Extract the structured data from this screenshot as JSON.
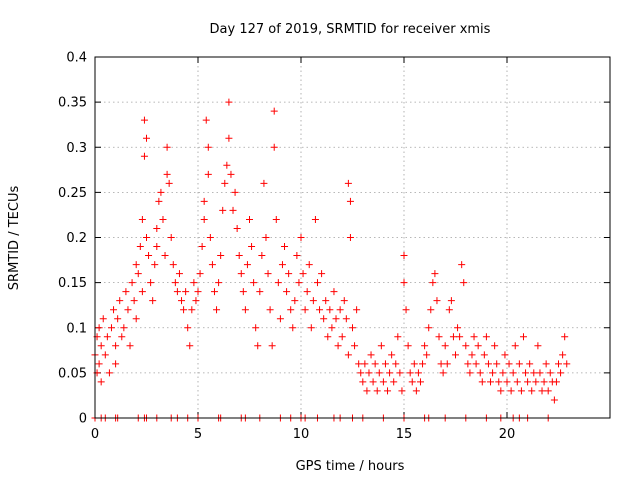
{
  "chart_data": {
    "type": "scatter",
    "title": "Day 127 of 2019, SRMTID for receiver xmis",
    "xlabel": "GPS time / hours",
    "ylabel": "SRMTID / TECUs",
    "xlim": [
      0,
      25
    ],
    "ylim": [
      0,
      0.4
    ],
    "grid": true,
    "x_ticks": [
      0,
      5,
      10,
      15,
      20
    ],
    "x_tick_labels": [
      "0",
      "5",
      "10",
      "15",
      "20"
    ],
    "y_ticks": [
      0,
      0.05,
      0.1,
      0.15,
      0.2,
      0.25,
      0.3,
      0.35,
      0.4
    ],
    "y_tick_labels": [
      "0",
      "0.05",
      "0.1",
      "0.15",
      "0.2",
      "0.25",
      "0.3",
      "0.35",
      "0.4"
    ],
    "marker": "plus",
    "color": "#ff0000",
    "series": [
      {
        "name": "SRMTID",
        "points": [
          [
            0.0,
            0.07
          ],
          [
            0.1,
            0.05
          ],
          [
            0.1,
            0.09
          ],
          [
            0.2,
            0.06
          ],
          [
            0.2,
            0.1
          ],
          [
            0.3,
            0.04
          ],
          [
            0.3,
            0.08
          ],
          [
            0.4,
            0.11
          ],
          [
            0.5,
            0.07
          ],
          [
            0.6,
            0.09
          ],
          [
            0.7,
            0.05
          ],
          [
            0.8,
            0.1
          ],
          [
            0.9,
            0.12
          ],
          [
            1.0,
            0.08
          ],
          [
            1.0,
            0.06
          ],
          [
            1.1,
            0.11
          ],
          [
            1.2,
            0.13
          ],
          [
            1.3,
            0.09
          ],
          [
            1.4,
            0.1
          ],
          [
            1.5,
            0.14
          ],
          [
            1.6,
            0.12
          ],
          [
            1.7,
            0.08
          ],
          [
            1.8,
            0.15
          ],
          [
            1.9,
            0.13
          ],
          [
            2.0,
            0.11
          ],
          [
            2.0,
            0.17
          ],
          [
            2.1,
            0.16
          ],
          [
            2.2,
            0.19
          ],
          [
            2.3,
            0.22
          ],
          [
            2.3,
            0.14
          ],
          [
            2.4,
            0.29
          ],
          [
            2.4,
            0.33
          ],
          [
            2.5,
            0.31
          ],
          [
            2.5,
            0.2
          ],
          [
            2.6,
            0.18
          ],
          [
            2.7,
            0.15
          ],
          [
            2.8,
            0.13
          ],
          [
            2.9,
            0.17
          ],
          [
            3.0,
            0.21
          ],
          [
            3.0,
            0.19
          ],
          [
            3.1,
            0.24
          ],
          [
            3.2,
            0.25
          ],
          [
            3.3,
            0.22
          ],
          [
            3.4,
            0.18
          ],
          [
            3.5,
            0.27
          ],
          [
            3.5,
            0.3
          ],
          [
            3.6,
            0.26
          ],
          [
            3.7,
            0.2
          ],
          [
            3.8,
            0.17
          ],
          [
            3.9,
            0.15
          ],
          [
            4.0,
            0.14
          ],
          [
            4.1,
            0.16
          ],
          [
            4.2,
            0.13
          ],
          [
            4.3,
            0.12
          ],
          [
            4.4,
            0.14
          ],
          [
            4.5,
            0.1
          ],
          [
            4.6,
            0.08
          ],
          [
            4.7,
            0.12
          ],
          [
            4.8,
            0.15
          ],
          [
            4.9,
            0.13
          ],
          [
            5.0,
            0.14
          ],
          [
            5.1,
            0.16
          ],
          [
            5.2,
            0.19
          ],
          [
            5.3,
            0.22
          ],
          [
            5.3,
            0.24
          ],
          [
            5.4,
            0.33
          ],
          [
            5.5,
            0.3
          ],
          [
            5.5,
            0.27
          ],
          [
            5.6,
            0.2
          ],
          [
            5.7,
            0.17
          ],
          [
            5.8,
            0.14
          ],
          [
            5.9,
            0.12
          ],
          [
            6.0,
            0.15
          ],
          [
            6.1,
            0.18
          ],
          [
            6.2,
            0.23
          ],
          [
            6.3,
            0.26
          ],
          [
            6.4,
            0.28
          ],
          [
            6.5,
            0.35
          ],
          [
            6.5,
            0.31
          ],
          [
            6.6,
            0.27
          ],
          [
            6.7,
            0.23
          ],
          [
            6.8,
            0.25
          ],
          [
            6.9,
            0.21
          ],
          [
            7.0,
            0.18
          ],
          [
            7.1,
            0.16
          ],
          [
            7.2,
            0.14
          ],
          [
            7.3,
            0.12
          ],
          [
            7.4,
            0.17
          ],
          [
            7.5,
            0.22
          ],
          [
            7.6,
            0.19
          ],
          [
            7.7,
            0.15
          ],
          [
            7.8,
            0.1
          ],
          [
            7.9,
            0.08
          ],
          [
            8.0,
            0.14
          ],
          [
            8.1,
            0.18
          ],
          [
            8.2,
            0.26
          ],
          [
            8.3,
            0.2
          ],
          [
            8.4,
            0.16
          ],
          [
            8.5,
            0.12
          ],
          [
            8.6,
            0.08
          ],
          [
            8.7,
            0.34
          ],
          [
            8.7,
            0.3
          ],
          [
            8.8,
            0.22
          ],
          [
            8.9,
            0.15
          ],
          [
            9.0,
            0.11
          ],
          [
            9.1,
            0.17
          ],
          [
            9.2,
            0.19
          ],
          [
            9.3,
            0.14
          ],
          [
            9.4,
            0.16
          ],
          [
            9.5,
            0.12
          ],
          [
            9.6,
            0.1
          ],
          [
            9.7,
            0.13
          ],
          [
            9.8,
            0.18
          ],
          [
            9.9,
            0.15
          ],
          [
            10.0,
            0.2
          ],
          [
            10.1,
            0.16
          ],
          [
            10.2,
            0.12
          ],
          [
            10.3,
            0.14
          ],
          [
            10.4,
            0.17
          ],
          [
            10.5,
            0.1
          ],
          [
            10.6,
            0.13
          ],
          [
            10.7,
            0.22
          ],
          [
            10.8,
            0.15
          ],
          [
            10.9,
            0.12
          ],
          [
            11.0,
            0.16
          ],
          [
            11.1,
            0.11
          ],
          [
            11.2,
            0.13
          ],
          [
            11.3,
            0.09
          ],
          [
            11.4,
            0.12
          ],
          [
            11.5,
            0.1
          ],
          [
            11.6,
            0.14
          ],
          [
            11.7,
            0.11
          ],
          [
            11.8,
            0.08
          ],
          [
            11.9,
            0.12
          ],
          [
            12.0,
            0.09
          ],
          [
            12.1,
            0.13
          ],
          [
            12.2,
            0.11
          ],
          [
            12.3,
            0.07
          ],
          [
            12.3,
            0.26
          ],
          [
            12.4,
            0.24
          ],
          [
            12.4,
            0.2
          ],
          [
            12.5,
            0.1
          ],
          [
            12.6,
            0.08
          ],
          [
            12.7,
            0.12
          ],
          [
            12.8,
            0.06
          ],
          [
            12.9,
            0.05
          ],
          [
            13.0,
            0.04
          ],
          [
            13.1,
            0.06
          ],
          [
            13.2,
            0.03
          ],
          [
            13.3,
            0.05
          ],
          [
            13.4,
            0.07
          ],
          [
            13.5,
            0.04
          ],
          [
            13.6,
            0.06
          ],
          [
            13.7,
            0.03
          ],
          [
            13.8,
            0.05
          ],
          [
            13.9,
            0.08
          ],
          [
            14.0,
            0.04
          ],
          [
            14.1,
            0.06
          ],
          [
            14.2,
            0.03
          ],
          [
            14.3,
            0.05
          ],
          [
            14.4,
            0.07
          ],
          [
            14.5,
            0.04
          ],
          [
            14.6,
            0.06
          ],
          [
            14.7,
            0.09
          ],
          [
            14.8,
            0.05
          ],
          [
            14.9,
            0.03
          ],
          [
            15.0,
            0.18
          ],
          [
            15.0,
            0.15
          ],
          [
            15.1,
            0.12
          ],
          [
            15.2,
            0.08
          ],
          [
            15.3,
            0.05
          ],
          [
            15.4,
            0.04
          ],
          [
            15.5,
            0.06
          ],
          [
            15.6,
            0.03
          ],
          [
            15.7,
            0.05
          ],
          [
            15.8,
            0.04
          ],
          [
            15.9,
            0.06
          ],
          [
            16.0,
            0.08
          ],
          [
            16.1,
            0.07
          ],
          [
            16.2,
            0.1
          ],
          [
            16.3,
            0.12
          ],
          [
            16.4,
            0.15
          ],
          [
            16.5,
            0.16
          ],
          [
            16.6,
            0.13
          ],
          [
            16.7,
            0.09
          ],
          [
            16.8,
            0.06
          ],
          [
            16.9,
            0.05
          ],
          [
            17.0,
            0.08
          ],
          [
            17.1,
            0.06
          ],
          [
            17.2,
            0.12
          ],
          [
            17.3,
            0.13
          ],
          [
            17.4,
            0.09
          ],
          [
            17.5,
            0.07
          ],
          [
            17.6,
            0.1
          ],
          [
            17.7,
            0.09
          ],
          [
            17.8,
            0.17
          ],
          [
            17.9,
            0.15
          ],
          [
            18.0,
            0.08
          ],
          [
            18.1,
            0.06
          ],
          [
            18.2,
            0.05
          ],
          [
            18.3,
            0.07
          ],
          [
            18.4,
            0.09
          ],
          [
            18.5,
            0.06
          ],
          [
            18.6,
            0.08
          ],
          [
            18.7,
            0.05
          ],
          [
            18.8,
            0.04
          ],
          [
            18.9,
            0.07
          ],
          [
            19.0,
            0.09
          ],
          [
            19.1,
            0.06
          ],
          [
            19.2,
            0.04
          ],
          [
            19.3,
            0.05
          ],
          [
            19.4,
            0.08
          ],
          [
            19.5,
            0.06
          ],
          [
            19.6,
            0.04
          ],
          [
            19.7,
            0.03
          ],
          [
            19.8,
            0.05
          ],
          [
            19.9,
            0.07
          ],
          [
            20.0,
            0.04
          ],
          [
            20.1,
            0.06
          ],
          [
            20.2,
            0.03
          ],
          [
            20.3,
            0.05
          ],
          [
            20.4,
            0.08
          ],
          [
            20.5,
            0.04
          ],
          [
            20.6,
            0.06
          ],
          [
            20.7,
            0.03
          ],
          [
            20.8,
            0.09
          ],
          [
            20.9,
            0.05
          ],
          [
            21.0,
            0.04
          ],
          [
            21.1,
            0.06
          ],
          [
            21.2,
            0.03
          ],
          [
            21.3,
            0.05
          ],
          [
            21.4,
            0.04
          ],
          [
            21.5,
            0.08
          ],
          [
            21.6,
            0.05
          ],
          [
            21.7,
            0.03
          ],
          [
            21.8,
            0.04
          ],
          [
            21.9,
            0.06
          ],
          [
            22.0,
            0.03
          ],
          [
            22.1,
            0.05
          ],
          [
            22.2,
            0.04
          ],
          [
            22.3,
            0.02
          ],
          [
            22.4,
            0.04
          ],
          [
            22.5,
            0.06
          ],
          [
            22.6,
            0.05
          ],
          [
            22.7,
            0.07
          ],
          [
            22.8,
            0.09
          ],
          [
            22.9,
            0.06
          ]
        ],
        "zero_points": [
          0.0,
          0.3,
          0.5,
          1.0,
          1.1,
          2.1,
          2.4,
          2.5,
          3.0,
          3.7,
          4.0,
          4.5,
          5.0,
          6.0,
          6.1,
          7.1,
          7.3,
          8.0,
          9.0,
          9.5,
          10.0,
          10.2,
          10.8,
          11.6,
          11.9,
          12.5,
          13.0,
          14.0,
          15.0,
          16.0,
          16.2,
          17.0,
          18.0,
          19.0,
          19.7,
          20.3,
          20.6,
          21.0,
          22.0
        ]
      }
    ]
  }
}
